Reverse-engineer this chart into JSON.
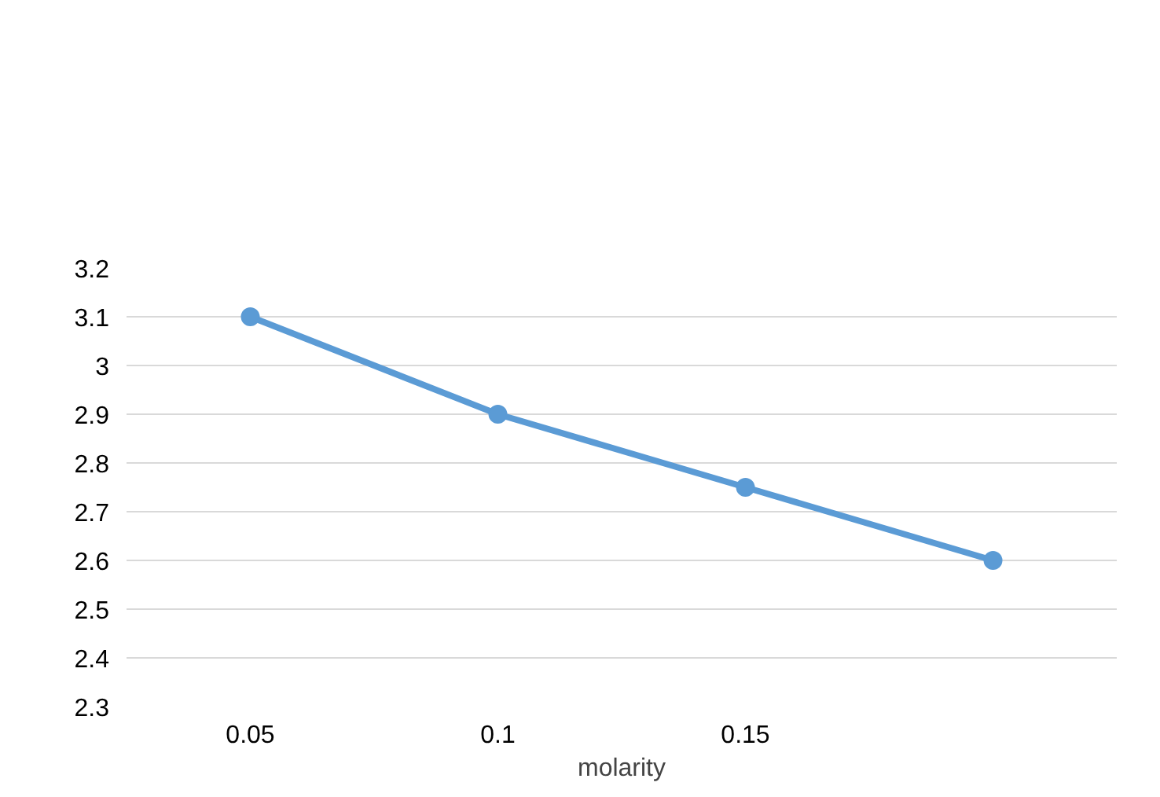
{
  "chart_data": {
    "type": "line",
    "xlabel": "molarity",
    "categories": [
      "0.05",
      "0.1",
      "0.15",
      null
    ],
    "series": [
      {
        "color": "#5b9bd5",
        "values": [
          3.1,
          2.9,
          2.75,
          2.6
        ]
      }
    ],
    "ylim": [
      2.3,
      3.2
    ],
    "yticks": [
      2.3,
      2.4,
      2.5,
      2.6,
      2.7,
      2.8,
      2.9,
      3,
      3.1,
      3.2
    ],
    "grid": "y",
    "marker": "circle"
  }
}
